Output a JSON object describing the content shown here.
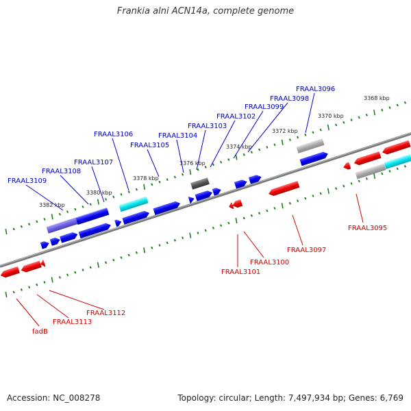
{
  "title": "Frankia alni ACN14a, complete genome",
  "footer": {
    "accession": "Accession: NC_008278",
    "summary": "Topology: circular; Length: 7,497,934 bp; Genes: 6,769"
  },
  "colors": {
    "forward_gene": "#0000ee",
    "reverse_gene": "#ee0000",
    "highlight_gene": "#00e5ee",
    "pseudo_gene": "#aaaaaa",
    "rna_gene": "#555555",
    "backbone": "#777777",
    "tick": "#1a7f1a",
    "label_forward": "#0000bb",
    "label_reverse": "#cc0000"
  },
  "scale_labels": [
    "3368 kbp",
    "3370 kbp",
    "3372 kbp",
    "3374 kbp",
    "3376 kbp",
    "3378 kbp",
    "3380 kbp",
    "3382 kbp"
  ],
  "gene_labels": {
    "forward": [
      "FRAAL3096",
      "FRAAL3098",
      "FRAAL3099",
      "FRAAL3102",
      "FRAAL3103",
      "FRAAL3104",
      "FRAAL3105",
      "FRAAL3106",
      "FRAAL3107",
      "FRAAL3108",
      "FRAAL3109"
    ],
    "reverse": [
      "FRAAL3095",
      "FRAAL3097",
      "FRAAL3100",
      "FRAAL3101",
      "FRAAL3112",
      "FRAAL3113",
      "fadB"
    ]
  }
}
